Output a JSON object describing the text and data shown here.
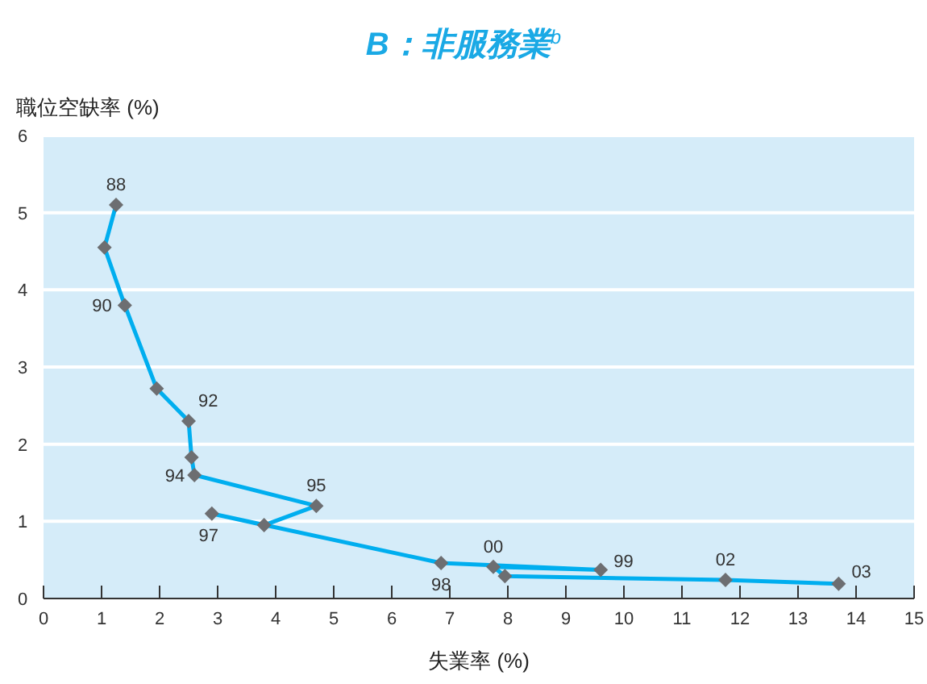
{
  "chart_data": {
    "type": "line",
    "title": "B：非服務業$^{b}$",
    "xlabel": "失業率 (%)",
    "ylabel": "職位空缺率 (%)",
    "x": [
      1.25,
      1.05,
      1.4,
      1.95,
      2.5,
      2.55,
      2.6,
      4.7,
      3.8,
      2.9,
      6.85,
      9.6,
      7.75,
      7.95,
      11.75,
      13.7
    ],
    "series": [
      {
        "color": "#00aeef",
        "values": [
          5.1,
          4.55,
          3.8,
          2.72,
          2.3,
          1.83,
          1.6,
          1.2,
          0.95,
          1.1,
          0.46,
          0.37,
          0.41,
          0.29,
          0.24,
          0.19
        ]
      }
    ],
    "annotations": [
      {
        "text": "88",
        "x": 1.25,
        "y": 5.1
      },
      {
        "text": "90",
        "x": 1.4,
        "y": 3.8
      },
      {
        "text": "92",
        "x": 2.5,
        "y": 2.3
      },
      {
        "text": "94",
        "x": 2.6,
        "y": 1.6
      },
      {
        "text": "95",
        "x": 4.7,
        "y": 1.2
      },
      {
        "text": "97",
        "x": 2.9,
        "y": 1.1
      },
      {
        "text": "98",
        "x": 6.85,
        "y": 0.46
      },
      {
        "text": "99",
        "x": 9.6,
        "y": 0.37
      },
      {
        "text": "00",
        "x": 7.75,
        "y": 0.41
      },
      {
        "text": "02",
        "x": 11.75,
        "y": 0.24
      },
      {
        "text": "03",
        "x": 13.7,
        "y": 0.19
      }
    ],
    "xlim": [
      0,
      15
    ],
    "ylim": [
      0,
      6
    ],
    "xticks": [
      0,
      1,
      2,
      3,
      4,
      5,
      6,
      7,
      8,
      9,
      10,
      11,
      12,
      13,
      14,
      15
    ],
    "yticks": [
      0,
      1,
      2,
      3,
      4,
      5,
      6
    ],
    "grid": "y",
    "marker": "diamond",
    "line_style": "solid"
  }
}
